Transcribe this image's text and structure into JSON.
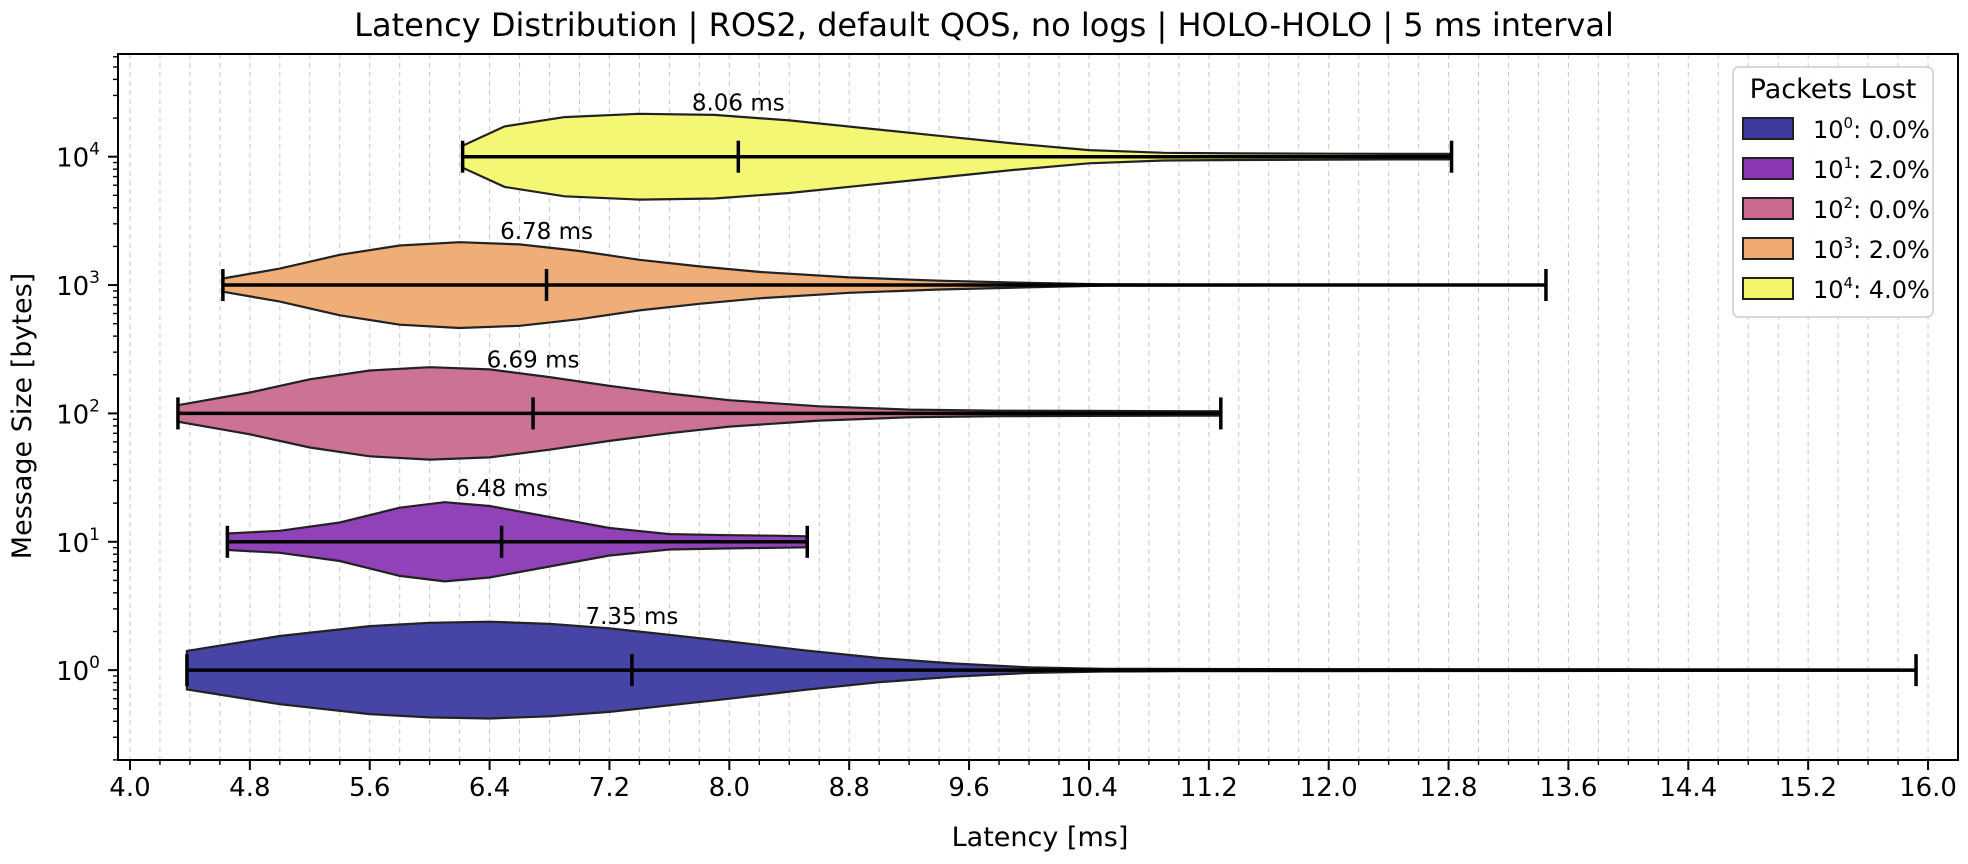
{
  "chart_data": {
    "type": "violin",
    "orientation": "horizontal",
    "title": "Latency Distribution | ROS2, default QOS, no logs | HOLO-HOLO | 5 ms interval",
    "xlabel": "Latency [ms]",
    "ylabel": "Message Size [bytes]",
    "xlim": [
      3.92,
      16.2
    ],
    "ylim_exponents": [
      -0.7,
      4.8
    ],
    "y_scale": "log",
    "xticks": [
      "4.0",
      "4.8",
      "5.6",
      "6.4",
      "7.2",
      "8.0",
      "8.8",
      "9.6",
      "10.4",
      "11.2",
      "12.0",
      "12.8",
      "13.6",
      "14.4",
      "15.2",
      "16.0"
    ],
    "yticks": [
      {
        "base": "10",
        "exp": "0"
      },
      {
        "base": "10",
        "exp": "1"
      },
      {
        "base": "10",
        "exp": "2"
      },
      {
        "base": "10",
        "exp": "3"
      },
      {
        "base": "10",
        "exp": "4"
      }
    ],
    "grid": "vertical dashed, major and minor",
    "legend": {
      "title": "Packets Lost",
      "placement": "top-right",
      "entries": [
        {
          "base": "10",
          "exp": "0",
          "value": ": 0.0%",
          "color": "#3c3a9f"
        },
        {
          "base": "10",
          "exp": "1",
          "value": ": 2.0%",
          "color": "#8b38b4"
        },
        {
          "base": "10",
          "exp": "2",
          "value": ": 0.0%",
          "color": "#c96a8e"
        },
        {
          "base": "10",
          "exp": "3",
          "value": ": 2.0%",
          "color": "#eeaa70"
        },
        {
          "base": "10",
          "exp": "4",
          "value": ": 4.0%",
          "color": "#f3f76c"
        }
      ]
    },
    "series": [
      {
        "size_exp": 0,
        "color": "#3c3a9f",
        "min": 4.38,
        "max": 15.92,
        "mean": 7.35,
        "mean_label": "7.35 ms",
        "density": [
          [
            4.38,
            0.35
          ],
          [
            5.0,
            0.62
          ],
          [
            5.6,
            0.8
          ],
          [
            6.0,
            0.86
          ],
          [
            6.4,
            0.88
          ],
          [
            6.8,
            0.84
          ],
          [
            7.2,
            0.76
          ],
          [
            7.6,
            0.64
          ],
          [
            8.0,
            0.52
          ],
          [
            8.5,
            0.36
          ],
          [
            9.0,
            0.22
          ],
          [
            9.5,
            0.12
          ],
          [
            10.0,
            0.05
          ],
          [
            10.5,
            0.025
          ],
          [
            11.0,
            0.02
          ],
          [
            12.0,
            0.018
          ],
          [
            13.0,
            0.016
          ],
          [
            14.0,
            0.014
          ],
          [
            15.0,
            0.012
          ],
          [
            15.92,
            0.01
          ]
        ]
      },
      {
        "size_exp": 1,
        "color": "#8b38b4",
        "min": 4.65,
        "max": 8.52,
        "mean": 6.48,
        "mean_label": "6.48 ms",
        "density": [
          [
            4.65,
            0.15
          ],
          [
            5.0,
            0.2
          ],
          [
            5.4,
            0.35
          ],
          [
            5.8,
            0.62
          ],
          [
            6.1,
            0.72
          ],
          [
            6.4,
            0.65
          ],
          [
            6.8,
            0.45
          ],
          [
            7.2,
            0.25
          ],
          [
            7.6,
            0.14
          ],
          [
            8.0,
            0.12
          ],
          [
            8.3,
            0.11
          ],
          [
            8.52,
            0.1
          ]
        ]
      },
      {
        "size_exp": 2,
        "color": "#c96a8e",
        "min": 4.32,
        "max": 11.28,
        "mean": 6.69,
        "mean_label": "6.69 ms",
        "density": [
          [
            4.32,
            0.15
          ],
          [
            4.8,
            0.38
          ],
          [
            5.2,
            0.62
          ],
          [
            5.6,
            0.78
          ],
          [
            6.0,
            0.84
          ],
          [
            6.4,
            0.8
          ],
          [
            6.8,
            0.66
          ],
          [
            7.2,
            0.5
          ],
          [
            7.6,
            0.36
          ],
          [
            8.0,
            0.24
          ],
          [
            8.6,
            0.13
          ],
          [
            9.2,
            0.07
          ],
          [
            9.8,
            0.05
          ],
          [
            10.4,
            0.045
          ],
          [
            11.0,
            0.04
          ],
          [
            11.28,
            0.04
          ]
        ]
      },
      {
        "size_exp": 3,
        "color": "#eeaa70",
        "min": 4.62,
        "max": 13.45,
        "mean": 6.78,
        "mean_label": "6.78 ms",
        "density": [
          [
            4.62,
            0.12
          ],
          [
            5.0,
            0.3
          ],
          [
            5.4,
            0.55
          ],
          [
            5.8,
            0.72
          ],
          [
            6.2,
            0.78
          ],
          [
            6.6,
            0.74
          ],
          [
            7.0,
            0.62
          ],
          [
            7.4,
            0.46
          ],
          [
            7.8,
            0.34
          ],
          [
            8.2,
            0.24
          ],
          [
            8.8,
            0.14
          ],
          [
            9.4,
            0.08
          ],
          [
            10.0,
            0.04
          ],
          [
            10.5,
            0.012
          ],
          [
            11.0,
            0.008
          ],
          [
            12.0,
            0.006
          ],
          [
            13.0,
            0.005
          ],
          [
            13.45,
            0.005
          ]
        ]
      },
      {
        "size_exp": 4,
        "color": "#f3f76c",
        "min": 6.22,
        "max": 12.82,
        "mean": 8.06,
        "mean_label": "8.06 ms",
        "density": [
          [
            6.22,
            0.2
          ],
          [
            6.5,
            0.55
          ],
          [
            6.9,
            0.72
          ],
          [
            7.4,
            0.78
          ],
          [
            7.9,
            0.76
          ],
          [
            8.4,
            0.66
          ],
          [
            8.9,
            0.52
          ],
          [
            9.4,
            0.38
          ],
          [
            9.9,
            0.24
          ],
          [
            10.4,
            0.12
          ],
          [
            10.9,
            0.07
          ],
          [
            11.4,
            0.06
          ],
          [
            12.0,
            0.055
          ],
          [
            12.5,
            0.05
          ],
          [
            12.82,
            0.05
          ]
        ]
      }
    ]
  }
}
